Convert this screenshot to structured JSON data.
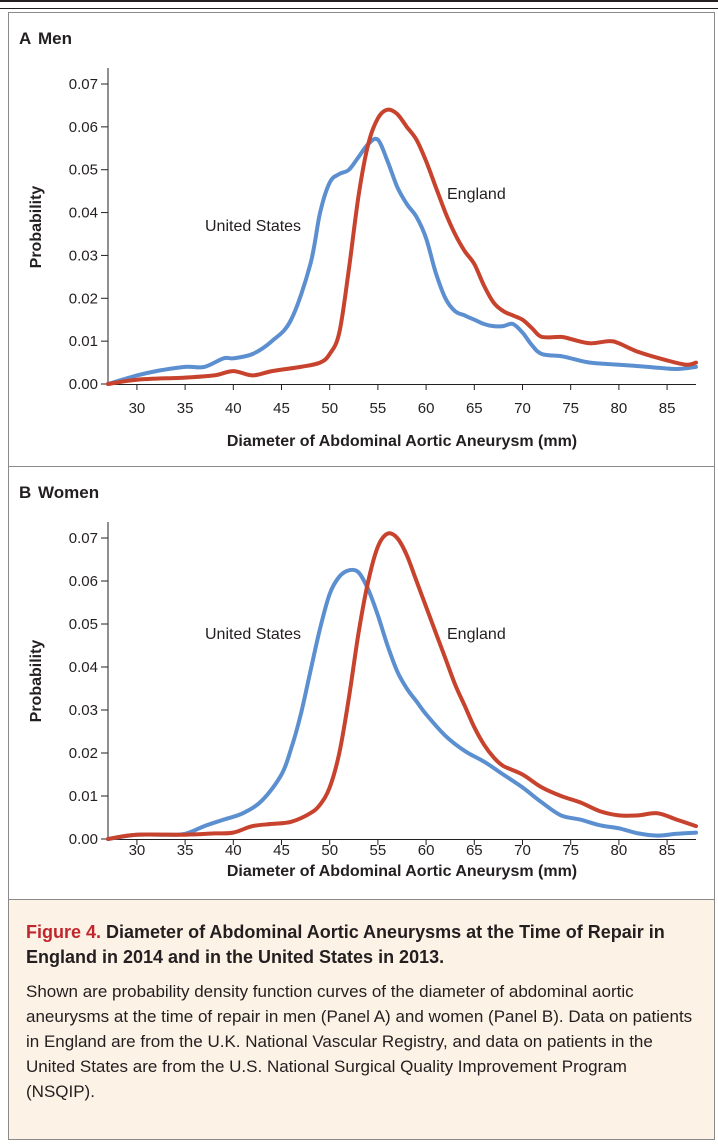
{
  "figure": {
    "label": "Figure 4.",
    "title": "Diameter of Abdominal Aortic Aneurysms at the Time of Repair in England in 2014 and in the United States in 2013.",
    "caption": "Shown are probability density function curves of the diameter of abdominal aortic aneurysms at the time of repair in men (Panel A) and women (Panel B). Data on patients in England are from the U.K. National Vascular Registry, and data on patients in the United States are from the U.S. National Surgical Quality Improvement Program (NSQIP)."
  },
  "colors": {
    "united_states": "#5b8fd0",
    "england": "#c7432d"
  },
  "chart_data": [
    {
      "type": "line",
      "panel_letter": "A",
      "panel_title": "Men",
      "xlabel": "Diameter of Abdominal Aortic Aneurysm (mm)",
      "ylabel": "Probability",
      "xlim": [
        27,
        88
      ],
      "ylim": [
        0,
        0.07
      ],
      "xticks": [
        30,
        35,
        40,
        45,
        50,
        55,
        60,
        65,
        70,
        75,
        80,
        85
      ],
      "yticks": [
        "0.00",
        "0.01",
        "0.02",
        "0.03",
        "0.04",
        "0.05",
        "0.06",
        "0.07"
      ],
      "series": [
        {
          "name": "United States",
          "x": [
            27,
            30,
            32,
            35,
            37,
            39,
            40,
            42,
            44,
            46,
            48,
            49,
            50,
            51,
            52,
            53,
            54,
            55,
            56,
            57,
            58,
            59,
            60,
            61,
            62,
            63,
            64,
            65,
            66,
            67,
            68,
            69,
            70,
            71,
            72,
            74,
            75,
            77,
            80,
            83,
            86,
            88
          ],
          "y": [
            0.0,
            0.002,
            0.003,
            0.004,
            0.004,
            0.006,
            0.006,
            0.007,
            0.01,
            0.015,
            0.028,
            0.04,
            0.047,
            0.049,
            0.05,
            0.053,
            0.056,
            0.057,
            0.052,
            0.046,
            0.042,
            0.039,
            0.034,
            0.026,
            0.02,
            0.017,
            0.016,
            0.015,
            0.014,
            0.0135,
            0.0135,
            0.014,
            0.012,
            0.009,
            0.007,
            0.0065,
            0.006,
            0.005,
            0.0045,
            0.004,
            0.0035,
            0.004
          ]
        },
        {
          "name": "England",
          "x": [
            27,
            30,
            35,
            38,
            40,
            42,
            44,
            47,
            49,
            50,
            51,
            52,
            53,
            54,
            55,
            56,
            57,
            58,
            59,
            60,
            61,
            62,
            63,
            64,
            65,
            66,
            67,
            68,
            69,
            70,
            71,
            72,
            74,
            75,
            77,
            79,
            80,
            82,
            85,
            87,
            88
          ],
          "y": [
            0.0,
            0.001,
            0.0015,
            0.002,
            0.003,
            0.002,
            0.003,
            0.004,
            0.005,
            0.007,
            0.012,
            0.027,
            0.044,
            0.056,
            0.062,
            0.064,
            0.063,
            0.06,
            0.057,
            0.052,
            0.046,
            0.04,
            0.035,
            0.031,
            0.028,
            0.023,
            0.019,
            0.017,
            0.016,
            0.015,
            0.013,
            0.011,
            0.011,
            0.0105,
            0.0095,
            0.01,
            0.0095,
            0.0075,
            0.0055,
            0.0045,
            0.005
          ]
        }
      ],
      "annotations": [
        "United States",
        "England"
      ]
    },
    {
      "type": "line",
      "panel_letter": "B",
      "panel_title": "Women",
      "xlabel": "Diameter of Abdominal Aortic Aneurysm (mm)",
      "ylabel": "Probability",
      "xlim": [
        27,
        88
      ],
      "ylim": [
        0,
        0.07
      ],
      "xticks": [
        30,
        35,
        40,
        45,
        50,
        55,
        60,
        65,
        70,
        75,
        80,
        85
      ],
      "yticks": [
        "0.00",
        "0.01",
        "0.02",
        "0.03",
        "0.04",
        "0.05",
        "0.06",
        "0.07"
      ],
      "series": [
        {
          "name": "United States",
          "x": [
            27,
            30,
            33,
            35,
            37,
            39,
            41,
            43,
            45,
            46,
            47,
            48,
            49,
            50,
            51,
            52,
            53,
            54,
            55,
            56,
            57,
            58,
            59,
            60,
            62,
            64,
            66,
            68,
            70,
            72,
            74,
            76,
            78,
            80,
            82,
            84,
            86,
            88
          ],
          "y": [
            0.0,
            0.001,
            0.001,
            0.0012,
            0.003,
            0.0045,
            0.006,
            0.009,
            0.015,
            0.021,
            0.029,
            0.039,
            0.049,
            0.057,
            0.061,
            0.0625,
            0.062,
            0.058,
            0.052,
            0.045,
            0.039,
            0.035,
            0.032,
            0.029,
            0.024,
            0.0205,
            0.018,
            0.015,
            0.012,
            0.0085,
            0.0055,
            0.0045,
            0.0032,
            0.0025,
            0.0013,
            0.0008,
            0.0012,
            0.0015
          ]
        },
        {
          "name": "England",
          "x": [
            27,
            30,
            35,
            38,
            40,
            42,
            44,
            46,
            48,
            49,
            50,
            51,
            52,
            53,
            54,
            55,
            56,
            57,
            58,
            59,
            60,
            61,
            62,
            63,
            64,
            65,
            66,
            67,
            68,
            70,
            72,
            74,
            76,
            78,
            80,
            82,
            84,
            86,
            88
          ],
          "y": [
            0.0,
            0.001,
            0.001,
            0.0013,
            0.0015,
            0.003,
            0.0035,
            0.004,
            0.006,
            0.008,
            0.012,
            0.02,
            0.033,
            0.048,
            0.06,
            0.068,
            0.071,
            0.07,
            0.066,
            0.06,
            0.054,
            0.048,
            0.042,
            0.036,
            0.031,
            0.026,
            0.022,
            0.019,
            0.017,
            0.015,
            0.012,
            0.01,
            0.0085,
            0.0065,
            0.0055,
            0.0055,
            0.006,
            0.0045,
            0.003
          ]
        }
      ],
      "annotations": [
        "United States",
        "England"
      ]
    }
  ]
}
